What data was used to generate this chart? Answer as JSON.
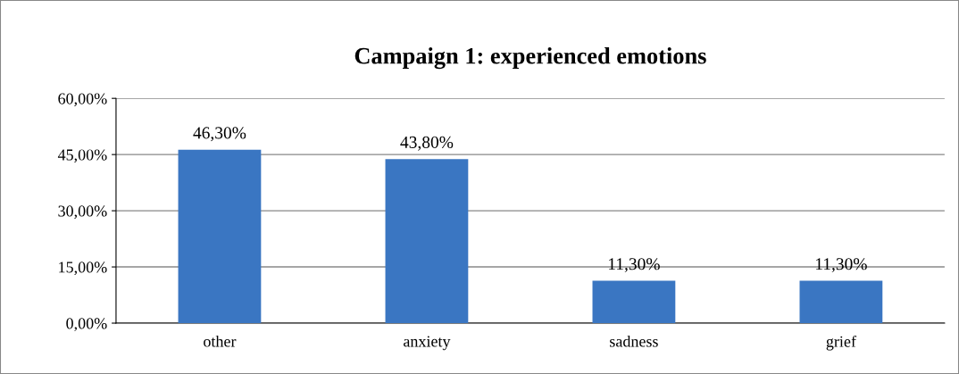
{
  "chart_data": {
    "type": "bar",
    "title": "Campaign 1: experienced emotions",
    "categories": [
      "other",
      "anxiety",
      "sadness",
      "grief"
    ],
    "values": [
      46.3,
      43.8,
      11.3,
      11.3
    ],
    "value_labels": [
      "46,30%",
      "43,80%",
      "11,30%",
      "11,30%"
    ],
    "color": "#3a76c2",
    "ylim": [
      0,
      60
    ],
    "yticks": [
      {
        "value": 0,
        "label": "0,00%"
      },
      {
        "value": 15,
        "label": "15,00%"
      },
      {
        "value": 30,
        "label": "30,00%"
      },
      {
        "value": 45,
        "label": "45,00%"
      },
      {
        "value": 60,
        "label": "60,00%"
      }
    ],
    "grid": "y",
    "legend": false
  }
}
